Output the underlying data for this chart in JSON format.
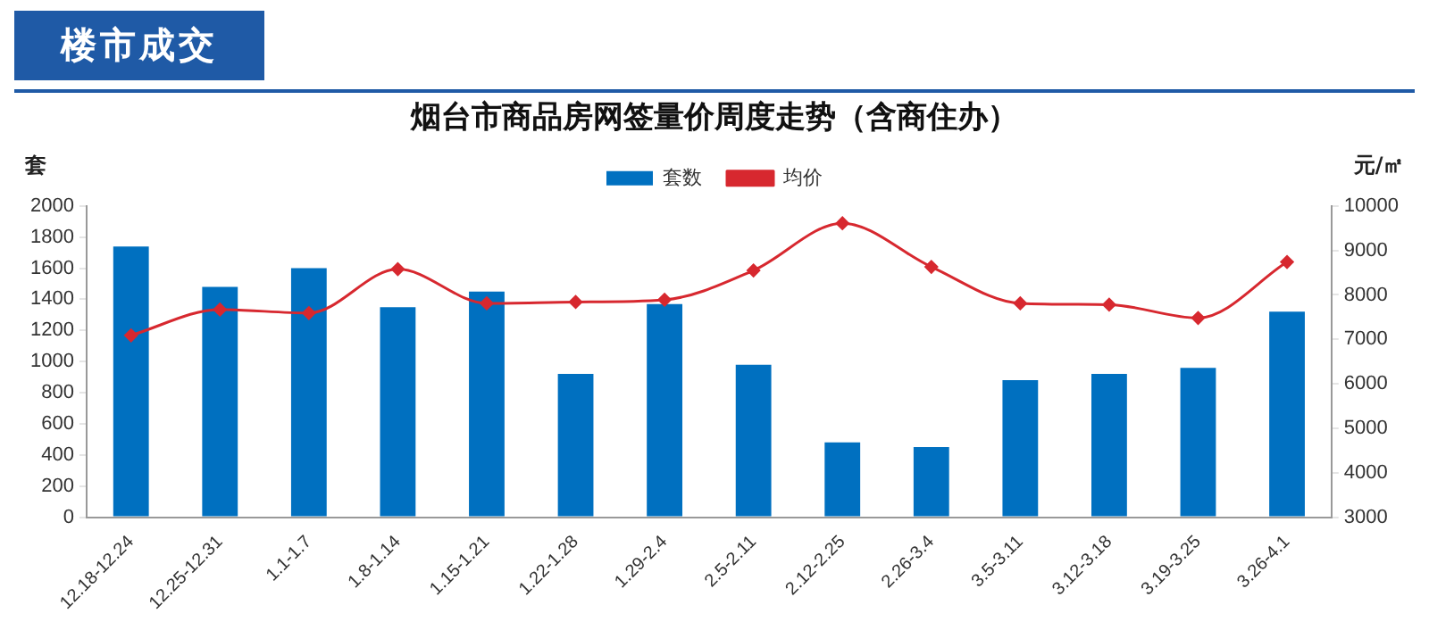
{
  "chart_data": {
    "type": "bar",
    "title": "烟台市商品房网签量价周度走势（含商住办）",
    "annotations": [
      "楼市成交"
    ],
    "ylabel": "套",
    "y2label": "元/㎡",
    "categories": [
      "12.18-12.24",
      "12.25-12.31",
      "1.1-1.7",
      "1.8-1.14",
      "1.15-1.21",
      "1.22-1.28",
      "1.29-2.4",
      "2.5-2.11",
      "2.12-2.25",
      "2.26-3.4",
      "3.5-3.11",
      "3.12-3.18",
      "3.19-3.25",
      "3.26-4.1"
    ],
    "series": [
      {
        "name": "套数",
        "color": "#0070c0",
        "values": [
          1740,
          1480,
          1600,
          1350,
          1450,
          920,
          1370,
          980,
          480,
          450,
          880,
          920,
          960,
          1320
        ]
      },
      {
        "name": "均价",
        "type": "line",
        "axis": "y2",
        "color": "#d7282f",
        "marker": "diamond",
        "values": [
          7090,
          7670,
          7590,
          8580,
          7810,
          7840,
          7890,
          8550,
          9610,
          8630,
          7810,
          7780,
          7480,
          8740
        ]
      }
    ],
    "ylim": [
      0,
      2000
    ],
    "yticks": [
      0,
      200,
      400,
      600,
      800,
      1000,
      1200,
      1400,
      1600,
      1800,
      2000
    ],
    "y2lim": [
      3000,
      10000
    ],
    "y2ticks": [
      3000,
      4000,
      5000,
      6000,
      7000,
      8000,
      9000,
      10000
    ],
    "grid": false,
    "legend": "top"
  }
}
